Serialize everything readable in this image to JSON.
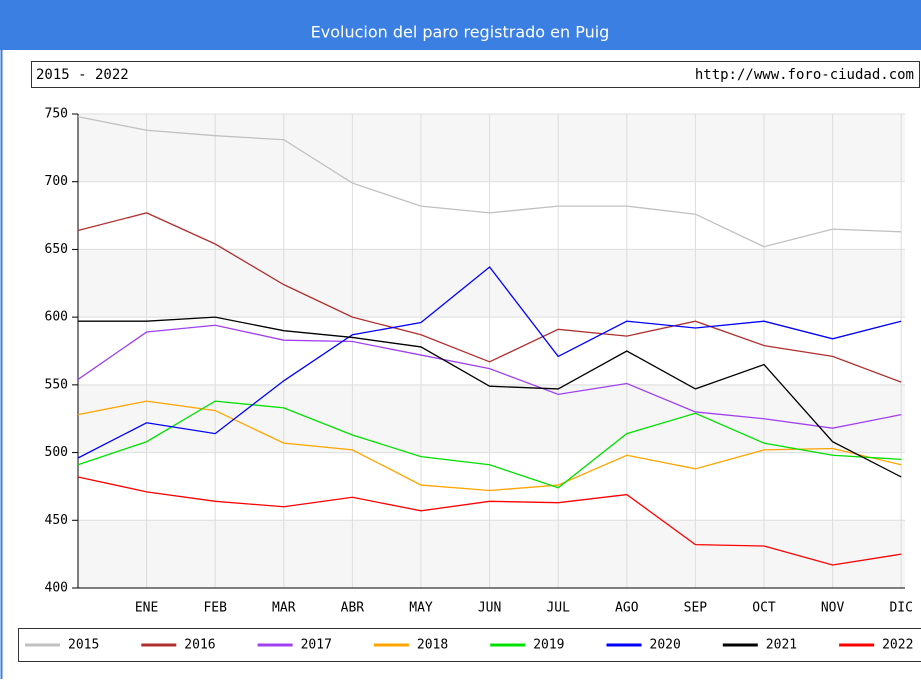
{
  "chart_data": {
    "type": "line",
    "title": "Evolucion del paro registrado en Puig",
    "subtitle": "2015 - 2022",
    "source": "http://www.foro-ciudad.com",
    "categories": [
      null,
      "ENE",
      "FEB",
      "MAR",
      "ABR",
      "MAY",
      "JUN",
      "JUL",
      "AGO",
      "SEP",
      "OCT",
      "NOV",
      "DIC"
    ],
    "ylim": [
      400,
      750
    ],
    "yticks": [
      400,
      450,
      500,
      550,
      600,
      650,
      700,
      750
    ],
    "grid": true,
    "legend": "bottom",
    "series": [
      {
        "name": "2015",
        "color": "#c0c0c0",
        "values": [
          748,
          738,
          734,
          731,
          699,
          682,
          677,
          682,
          682,
          676,
          652,
          665,
          663
        ]
      },
      {
        "name": "2016",
        "color": "#b03030",
        "values": [
          664,
          677,
          654,
          624,
          600,
          587,
          567,
          591,
          586,
          597,
          579,
          571,
          552
        ]
      },
      {
        "name": "2017",
        "color": "#a040f0",
        "values": [
          554,
          589,
          594,
          583,
          582,
          572,
          562,
          543,
          551,
          530,
          525,
          518,
          528
        ]
      },
      {
        "name": "2018",
        "color": "#ffa500",
        "values": [
          528,
          538,
          531,
          507,
          502,
          476,
          472,
          476,
          498,
          488,
          502,
          503,
          491
        ]
      },
      {
        "name": "2019",
        "color": "#00e000",
        "values": [
          491,
          508,
          538,
          533,
          513,
          497,
          491,
          474,
          514,
          529,
          507,
          498,
          495
        ]
      },
      {
        "name": "2020",
        "color": "#0000ff",
        "values": [
          496,
          522,
          514,
          553,
          587,
          596,
          637,
          571,
          597,
          592,
          597,
          584,
          597
        ]
      },
      {
        "name": "2021",
        "color": "#000000",
        "values": [
          597,
          597,
          600,
          590,
          585,
          578,
          549,
          547,
          575,
          547,
          565,
          508,
          482
        ]
      },
      {
        "name": "2022",
        "color": "#ff0000",
        "values": [
          482,
          471,
          464,
          460,
          467,
          457,
          464,
          463,
          469,
          432,
          431,
          417,
          425
        ]
      }
    ]
  }
}
